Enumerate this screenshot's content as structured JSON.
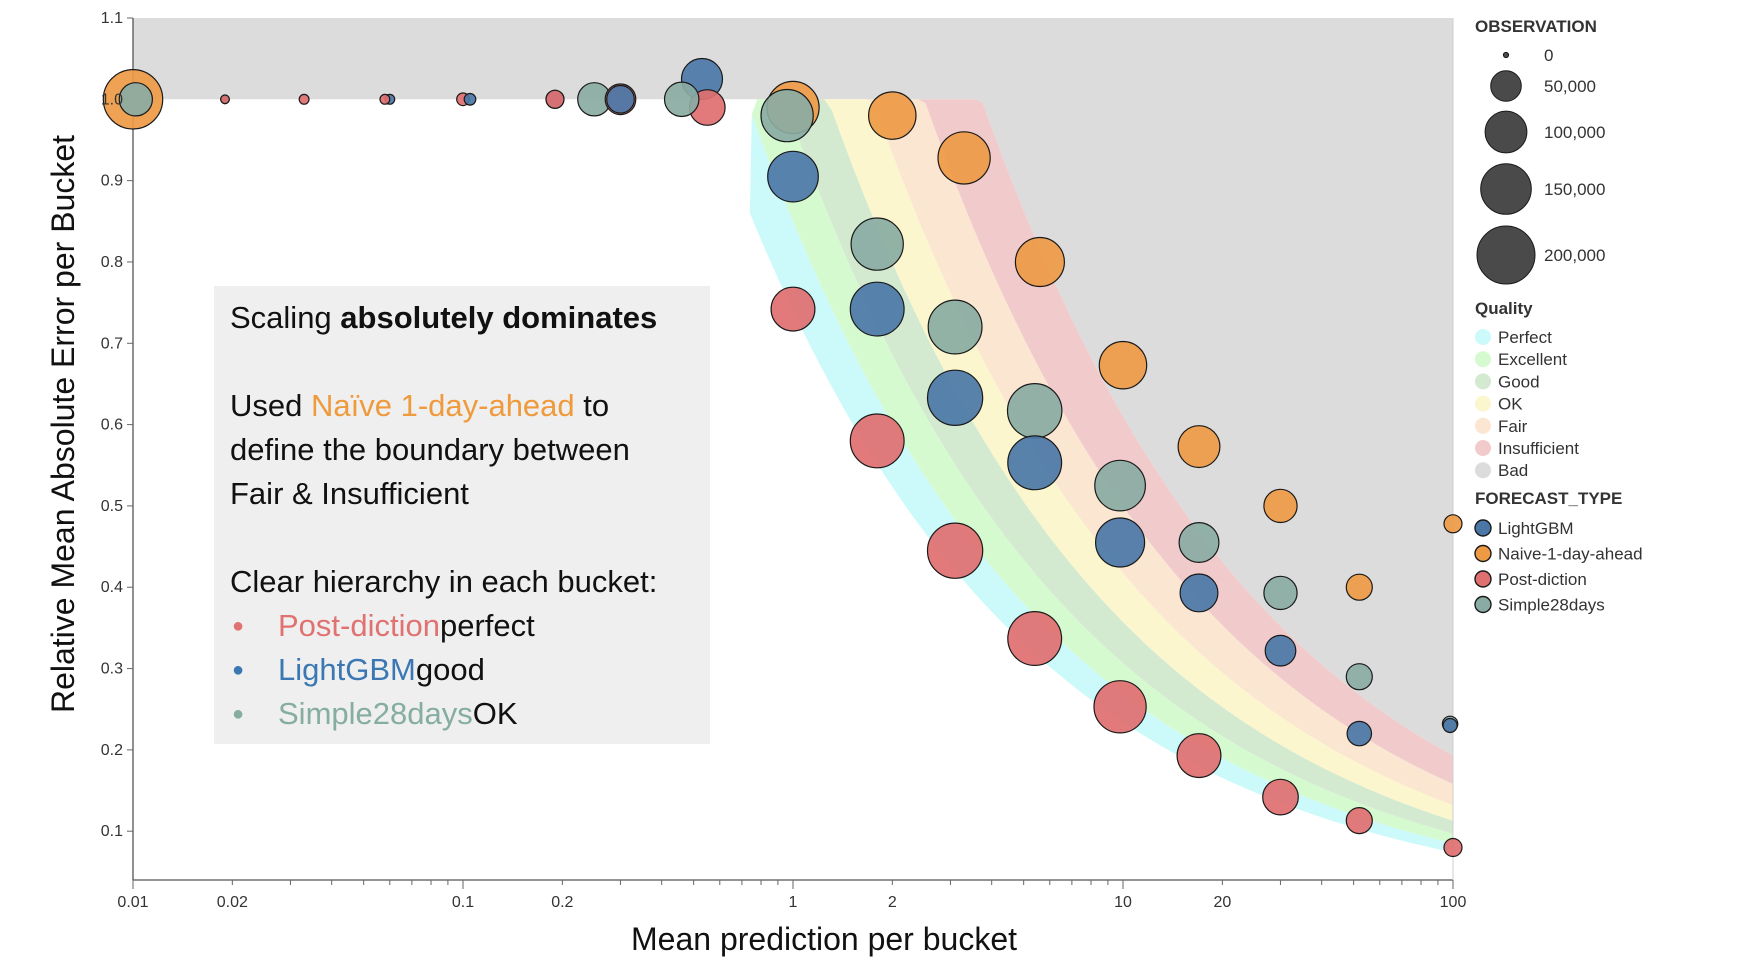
{
  "chart_data": {
    "type": "scatter",
    "xlabel": "Mean prediction per bucket",
    "ylabel": "Relative Mean Absolute Error per Bucket",
    "xscale": "log",
    "xlim": [
      0.01,
      100
    ],
    "ylim": [
      0.04,
      1.1
    ],
    "x_ticks": [
      {
        "v": 0.01,
        "label": "0.01"
      },
      {
        "v": 0.02,
        "label": "0.02"
      },
      {
        "v": 0.1,
        "label": "0.1"
      },
      {
        "v": 0.2,
        "label": "0.2"
      },
      {
        "v": 1,
        "label": "1"
      },
      {
        "v": 2,
        "label": "2"
      },
      {
        "v": 10,
        "label": "10"
      },
      {
        "v": 20,
        "label": "20"
      },
      {
        "v": 100,
        "label": "100"
      }
    ],
    "y_ticks": [
      "0.1",
      "0.2",
      "0.3",
      "0.4",
      "0.5",
      "0.6",
      "0.7",
      "0.8",
      "0.9",
      "1.0",
      "1.1"
    ],
    "quality_bands": {
      "edges": [
        {
          "k": 0.85,
          "x0": 0.75
        },
        {
          "k": 0.97,
          "x0": 0.78
        },
        {
          "k": 1.13,
          "x0": 0.81
        },
        {
          "k": 1.32,
          "x0": 0.84
        },
        {
          "k": 1.58,
          "x0": 0.88
        },
        {
          "k": 1.93,
          "x0": 0.92
        }
      ],
      "colors": [
        "#ccfafa",
        "#d6fad0",
        "#d3ead0",
        "#fbf6cd",
        "#fbe6d2",
        "#f1cbcb",
        "#dcdcdc"
      ]
    },
    "series": [
      {
        "name": "LightGBM",
        "color": "#4b77a7",
        "points": [
          {
            "x": 0.019,
            "y": 1.0,
            "size": 2000
          },
          {
            "x": 0.06,
            "y": 1.0,
            "size": 3000
          },
          {
            "x": 0.105,
            "y": 1.0,
            "size": 5000
          },
          {
            "x": 0.19,
            "y": 1.0,
            "size": 15000
          },
          {
            "x": 0.3,
            "y": 1.0,
            "size": 40000
          },
          {
            "x": 0.53,
            "y": 1.025,
            "size": 95000
          },
          {
            "x": 1.0,
            "y": 0.905,
            "size": 150000
          },
          {
            "x": 1.8,
            "y": 0.742,
            "size": 170000
          },
          {
            "x": 3.1,
            "y": 0.633,
            "size": 180000
          },
          {
            "x": 5.4,
            "y": 0.553,
            "size": 170000
          },
          {
            "x": 9.8,
            "y": 0.455,
            "size": 140000
          },
          {
            "x": 17,
            "y": 0.393,
            "size": 80000
          },
          {
            "x": 30,
            "y": 0.322,
            "size": 50000
          },
          {
            "x": 52,
            "y": 0.22,
            "size": 30000
          },
          {
            "x": 98,
            "y": 0.23,
            "size": 8000
          }
        ]
      },
      {
        "name": "Naive-1-day-ahead",
        "color": "#ee9a45",
        "points": [
          {
            "x": 0.01,
            "y": 1.0,
            "size": 210000
          },
          {
            "x": 1.0,
            "y": 0.99,
            "size": 160000
          },
          {
            "x": 2.0,
            "y": 0.98,
            "size": 130000
          },
          {
            "x": 3.3,
            "y": 0.928,
            "size": 160000
          },
          {
            "x": 5.6,
            "y": 0.8,
            "size": 140000
          },
          {
            "x": 10,
            "y": 0.673,
            "size": 130000
          },
          {
            "x": 17,
            "y": 0.573,
            "size": 100000
          },
          {
            "x": 30,
            "y": 0.5,
            "size": 60000
          },
          {
            "x": 52,
            "y": 0.4,
            "size": 35000
          },
          {
            "x": 100,
            "y": 0.478,
            "size": 15000
          }
        ]
      },
      {
        "name": "Post-diction",
        "color": "#e06f70",
        "points": [
          {
            "x": 0.019,
            "y": 1.0,
            "size": 2000
          },
          {
            "x": 0.033,
            "y": 1.0,
            "size": 3000
          },
          {
            "x": 0.058,
            "y": 1.0,
            "size": 3000
          },
          {
            "x": 0.1,
            "y": 1.0,
            "size": 6000
          },
          {
            "x": 0.19,
            "y": 1.0,
            "size": 15000
          },
          {
            "x": 0.3,
            "y": 1.0,
            "size": 50000
          },
          {
            "x": 0.55,
            "y": 0.99,
            "size": 70000
          },
          {
            "x": 1.0,
            "y": 0.742,
            "size": 110000
          },
          {
            "x": 1.8,
            "y": 0.58,
            "size": 170000
          },
          {
            "x": 3.1,
            "y": 0.445,
            "size": 180000
          },
          {
            "x": 5.4,
            "y": 0.337,
            "size": 170000
          },
          {
            "x": 9.8,
            "y": 0.253,
            "size": 160000
          },
          {
            "x": 17,
            "y": 0.193,
            "size": 110000
          },
          {
            "x": 30,
            "y": 0.142,
            "size": 70000
          },
          {
            "x": 52,
            "y": 0.113,
            "size": 35000
          },
          {
            "x": 100,
            "y": 0.08,
            "size": 15000
          }
        ]
      },
      {
        "name": "Simple28days",
        "color": "#8aaba3",
        "points": [
          {
            "x": 0.0102,
            "y": 1.0,
            "size": 60000
          },
          {
            "x": 0.25,
            "y": 1.0,
            "size": 60000
          },
          {
            "x": 0.46,
            "y": 1.0,
            "size": 65000
          },
          {
            "x": 0.96,
            "y": 0.98,
            "size": 160000
          },
          {
            "x": 1.8,
            "y": 0.822,
            "size": 160000
          },
          {
            "x": 3.1,
            "y": 0.72,
            "size": 170000
          },
          {
            "x": 5.4,
            "y": 0.617,
            "size": 175000
          },
          {
            "x": 9.8,
            "y": 0.525,
            "size": 150000
          },
          {
            "x": 17,
            "y": 0.455,
            "size": 90000
          },
          {
            "x": 30,
            "y": 0.393,
            "size": 60000
          },
          {
            "x": 52,
            "y": 0.29,
            "size": 35000
          },
          {
            "x": 98,
            "y": 0.232,
            "size": 10000
          }
        ]
      }
    ]
  },
  "legend": {
    "observation": {
      "title": "OBSERVATION",
      "items": [
        {
          "label": "0",
          "value": 300
        },
        {
          "label": "50,000",
          "value": 50000
        },
        {
          "label": "100,000",
          "value": 100000
        },
        {
          "label": "150,000",
          "value": 150000
        },
        {
          "label": "200,000",
          "value": 200000
        }
      ]
    },
    "quality": {
      "title": "Quality",
      "items": [
        {
          "label": "Perfect",
          "color": "#ccfafa"
        },
        {
          "label": "Excellent",
          "color": "#d6fad0"
        },
        {
          "label": "Good",
          "color": "#d3ead0"
        },
        {
          "label": "OK",
          "color": "#fbf6cd"
        },
        {
          "label": "Fair",
          "color": "#fbe6d2"
        },
        {
          "label": "Insufficient",
          "color": "#f1cbcb"
        },
        {
          "label": "Bad",
          "color": "#dcdcdc"
        }
      ]
    },
    "forecast_type": {
      "title": "FORECAST_TYPE",
      "items": [
        {
          "label": "LightGBM",
          "color": "#4b77a7"
        },
        {
          "label": "Naive-1-day-ahead",
          "color": "#ee9a45"
        },
        {
          "label": "Post-diction",
          "color": "#e06f70"
        },
        {
          "label": "Simple28days",
          "color": "#8aaba3"
        }
      ]
    }
  },
  "note": {
    "line1_pre": "Scaling ",
    "line1_bold": "absolutely dominates",
    "line2_pre": "Used ",
    "line2_highlight": "Naïve 1-day-ahead",
    "line2_post": " to",
    "line3": "define the boundary between",
    "line4": "Fair & Insufficient",
    "line5": "Clear hierarchy in each bucket:",
    "bullet1_name": "Post-diction",
    "bullet1_desc": " perfect",
    "bullet2_name": "LightGBM",
    "bullet2_desc": " good",
    "bullet3_name": "Simple28days",
    "bullet3_desc": " OK"
  }
}
